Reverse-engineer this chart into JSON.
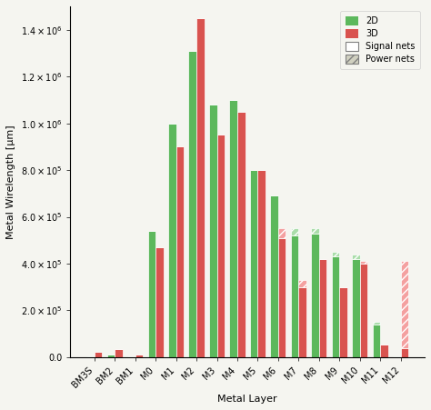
{
  "layers": [
    "BM3S",
    "BM2",
    "BM1",
    "M0",
    "M1",
    "M2",
    "M3",
    "M4",
    "M5",
    "M6",
    "M7",
    "M8",
    "M9",
    "M10",
    "M11",
    "M12"
  ],
  "2D_signal": [
    5000,
    12000,
    3000,
    540000,
    1000000,
    1310000,
    1080000,
    1100000,
    800000,
    690000,
    520000,
    530000,
    430000,
    420000,
    140000,
    5000
  ],
  "2D_power": [
    0,
    0,
    0,
    0,
    0,
    0,
    0,
    0,
    0,
    0,
    30000,
    20000,
    20000,
    20000,
    10000,
    0
  ],
  "3D_signal": [
    25000,
    35000,
    12000,
    470000,
    900000,
    1450000,
    950000,
    1050000,
    800000,
    510000,
    300000,
    420000,
    300000,
    400000,
    55000,
    40000
  ],
  "3D_power": [
    0,
    0,
    0,
    0,
    0,
    0,
    0,
    0,
    0,
    40000,
    30000,
    0,
    0,
    10000,
    0,
    370000
  ],
  "ylabel": "Metal Wirelength [μm]",
  "xlabel": "Metal Layer",
  "ylim": [
    0,
    1500000.0
  ],
  "yticks": [
    0,
    200000,
    400000,
    600000,
    800000,
    1000000,
    1200000,
    1400000
  ],
  "color_2d": "#5cb85c",
  "color_3d": "#d9534f",
  "color_2d_power": "#aaddaa",
  "color_3d_power": "#f4a0a0",
  "bg_color": "#f5f5f0",
  "title": "",
  "legend_2d": "2D",
  "legend_3d": "3D",
  "legend_signal": "Signal nets",
  "legend_power": "Power nets"
}
